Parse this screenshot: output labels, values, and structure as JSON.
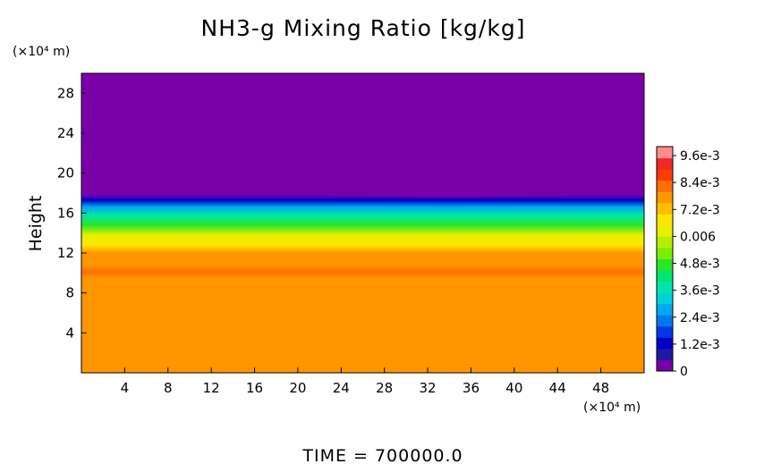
{
  "chart_data": {
    "type": "heatmap",
    "title": "NH3-g Mixing Ratio [kg/kg]",
    "xlabel": "",
    "ylabel": "Height",
    "x_unit_label": "(×10⁴ m)",
    "y_unit_label": "(×10⁴ m)",
    "footer": "TIME = 700000.0",
    "xlim": [
      0,
      52
    ],
    "ylim": [
      0,
      30
    ],
    "x_ticks": [
      4,
      8,
      12,
      16,
      20,
      24,
      28,
      32,
      36,
      40,
      44,
      48
    ],
    "y_ticks": [
      4,
      8,
      12,
      16,
      20,
      24,
      28
    ],
    "colorbar": {
      "min": 0,
      "max": 0.01,
      "levels": 20,
      "tick_values": [
        0,
        0.0012,
        0.0024,
        0.0036,
        0.0048,
        0.006,
        0.0072,
        0.0084,
        0.0096
      ],
      "tick_labels": [
        "0",
        "1.2e-3",
        "2.4e-3",
        "3.6e-3",
        "4.8e-3",
        "0.006",
        "7.2e-3",
        "8.4e-3",
        "9.6e-3"
      ],
      "colors": [
        "#7a00a8",
        "#1e1a9e",
        "#0000c8",
        "#0038e6",
        "#0078f0",
        "#00a8f0",
        "#00d2dc",
        "#00e6aa",
        "#00e66e",
        "#28e628",
        "#78f000",
        "#b4f000",
        "#e6f000",
        "#ffe600",
        "#ffbe00",
        "#ff9600",
        "#ff6e00",
        "#ff3c00",
        "#f02828",
        "#ff8c8c"
      ]
    },
    "profile": [
      {
        "height": 0,
        "value": 0.0076
      },
      {
        "height": 9.5,
        "value": 0.0076
      },
      {
        "height": 10.1,
        "value": 0.0081
      },
      {
        "height": 10.8,
        "value": 0.0077
      },
      {
        "height": 12.0,
        "value": 0.0075
      },
      {
        "height": 12.8,
        "value": 0.0068
      },
      {
        "height": 13.8,
        "value": 0.006
      },
      {
        "height": 14.8,
        "value": 0.0047
      },
      {
        "height": 15.8,
        "value": 0.0036
      },
      {
        "height": 16.6,
        "value": 0.0025
      },
      {
        "height": 17.3,
        "value": 0.0012
      },
      {
        "height": 17.8,
        "value": 0.0003
      },
      {
        "height": 18.2,
        "value": 0
      },
      {
        "height": 30,
        "value": 0
      }
    ],
    "top_edge_profile": [
      {
        "x": 0,
        "height": 18.0
      },
      {
        "x": 10,
        "height": 18.1
      },
      {
        "x": 22,
        "height": 17.9
      },
      {
        "x": 34,
        "height": 17.7
      },
      {
        "x": 46,
        "height": 17.9
      },
      {
        "x": 52,
        "height": 18.0
      }
    ]
  }
}
